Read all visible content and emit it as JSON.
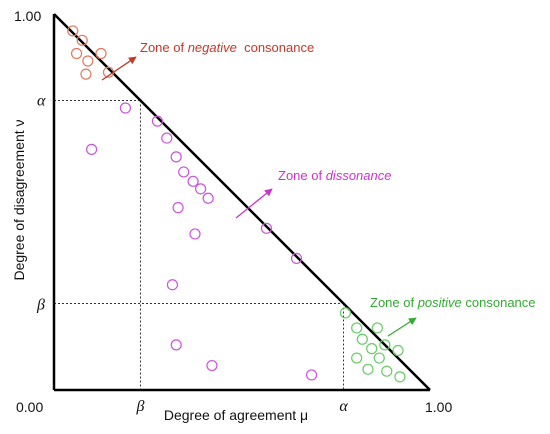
{
  "chart_data": {
    "type": "scatter",
    "title": "",
    "xlabel": "Degree of agreement μ",
    "ylabel": "Degree of disagreement ν",
    "xlim": [
      0,
      1
    ],
    "ylim": [
      0,
      1
    ],
    "grid": false,
    "x_ticks": [
      "0.00",
      "β",
      "α",
      "1.00"
    ],
    "y_ticks": [
      "β",
      "α",
      "1.00"
    ],
    "thresholds": {
      "alpha": 0.77,
      "beta": 0.23
    },
    "diagonal_line": [
      [
        0,
        1
      ],
      [
        1,
        0
      ]
    ],
    "series": [
      {
        "color": "#e07a5f",
        "points": [
          {
            "x": 0.05,
            "y": 0.955
          },
          {
            "x": 0.075,
            "y": 0.93
          },
          {
            "x": 0.125,
            "y": 0.895
          },
          {
            "x": 0.06,
            "y": 0.895
          },
          {
            "x": 0.09,
            "y": 0.875
          },
          {
            "x": 0.145,
            "y": 0.845
          },
          {
            "x": 0.085,
            "y": 0.84
          }
        ]
      },
      {
        "color": "#cc55dd",
        "points": [
          {
            "x": 0.19,
            "y": 0.75
          },
          {
            "x": 0.275,
            "y": 0.715
          },
          {
            "x": 0.3,
            "y": 0.67
          },
          {
            "x": 0.1,
            "y": 0.64
          },
          {
            "x": 0.325,
            "y": 0.62
          },
          {
            "x": 0.345,
            "y": 0.58
          },
          {
            "x": 0.37,
            "y": 0.555
          },
          {
            "x": 0.39,
            "y": 0.535
          },
          {
            "x": 0.41,
            "y": 0.51
          },
          {
            "x": 0.33,
            "y": 0.485
          },
          {
            "x": 0.375,
            "y": 0.415
          },
          {
            "x": 0.565,
            "y": 0.43
          },
          {
            "x": 0.645,
            "y": 0.35
          },
          {
            "x": 0.315,
            "y": 0.28
          },
          {
            "x": 0.325,
            "y": 0.12
          },
          {
            "x": 0.42,
            "y": 0.065
          },
          {
            "x": 0.685,
            "y": 0.04
          }
        ]
      },
      {
        "color": "#66cc66",
        "points": [
          {
            "x": 0.775,
            "y": 0.205
          },
          {
            "x": 0.805,
            "y": 0.165
          },
          {
            "x": 0.86,
            "y": 0.165
          },
          {
            "x": 0.82,
            "y": 0.135
          },
          {
            "x": 0.845,
            "y": 0.11
          },
          {
            "x": 0.88,
            "y": 0.12
          },
          {
            "x": 0.915,
            "y": 0.105
          },
          {
            "x": 0.805,
            "y": 0.085
          },
          {
            "x": 0.865,
            "y": 0.085
          },
          {
            "x": 0.835,
            "y": 0.055
          },
          {
            "x": 0.885,
            "y": 0.05
          },
          {
            "x": 0.92,
            "y": 0.035
          }
        ]
      }
    ],
    "annotations": [
      {
        "id": "negative",
        "prefix": "Zone of ",
        "emph": "negative",
        "suffix": "  consonance",
        "color": "#c0392b"
      },
      {
        "id": "dissonance",
        "prefix": "Zone of ",
        "emph": "dissonance",
        "suffix": "",
        "color": "#cc33cc"
      },
      {
        "id": "positive",
        "prefix": "Zone of ",
        "emph": "positive",
        "suffix": " consonance",
        "color": "#33aa33"
      }
    ]
  }
}
